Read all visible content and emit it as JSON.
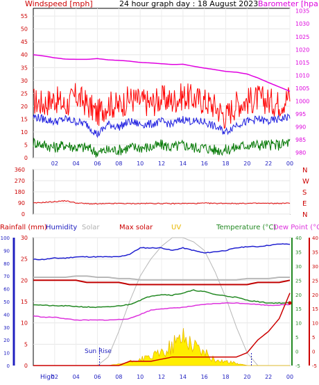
{
  "colors": {
    "windspeed_avg": "#2020e0",
    "windspeed_gust": "#ff0000",
    "windspeed_min": "#007700",
    "barometer": "#e000e0",
    "wind_dir": "#e00000",
    "rainfall": "#c00000",
    "humidity": "#2020d0",
    "solar": "#b0b0b0",
    "max_solar": "#c00000",
    "uv": "#e8b800",
    "temperature": "#228822",
    "dew_point": "#dd33dd",
    "solar_fill": "#ffee00",
    "axis_blue": "#2020c0",
    "axis_green": "#228822",
    "axis_red": "#cc0000"
  },
  "chart_data": [
    {
      "name": "wind-barometer",
      "type": "line",
      "title": "24 hour graph day : 18 August 2023",
      "left_label": "Windspeed [mph]",
      "right_label": "Barometer [hpa]",
      "x_ticks": [
        "02",
        "04",
        "06",
        "08",
        "10",
        "12",
        "14",
        "16",
        "18",
        "20",
        "22",
        "00"
      ],
      "y_left_ticks": [
        "0",
        "5",
        "10",
        "15",
        "20",
        "25",
        "30",
        "35",
        "40",
        "45",
        "50",
        "55"
      ],
      "y_right_ticks": [
        "980",
        "985",
        "990",
        "995",
        "1000",
        "1005",
        "1010",
        "1015",
        "1020",
        "1025",
        "1030",
        "1035"
      ],
      "ylim_left": [
        0,
        58
      ],
      "ylim_right": [
        978,
        1036
      ],
      "x_hours": [
        0,
        1,
        2,
        3,
        4,
        5,
        6,
        7,
        8,
        9,
        10,
        11,
        12,
        13,
        14,
        15,
        16,
        17,
        18,
        19,
        20,
        21,
        22,
        23,
        24
      ],
      "series": [
        {
          "key": "gust",
          "values": [
            22,
            21,
            23,
            20,
            24,
            21,
            17,
            21,
            20,
            23,
            22,
            21,
            23,
            22,
            24,
            23,
            22,
            20,
            16,
            21,
            22,
            23,
            22,
            21,
            24
          ]
        },
        {
          "key": "avg",
          "values": [
            16,
            15,
            14,
            15,
            14,
            13,
            9,
            13,
            12,
            14,
            13,
            13,
            14,
            13,
            15,
            14,
            14,
            12,
            10,
            13,
            14,
            15,
            14,
            15,
            16
          ]
        },
        {
          "key": "min",
          "values": [
            6,
            5,
            4,
            5,
            4,
            4,
            2,
            3,
            3,
            4,
            4,
            4,
            5,
            4,
            5,
            4,
            4,
            3,
            3,
            4,
            5,
            5,
            5,
            5,
            6
          ]
        },
        {
          "key": "barometer",
          "values": [
            1018,
            1017.5,
            1016.8,
            1016.3,
            1016.2,
            1016.2,
            1016.5,
            1016,
            1015.8,
            1015.5,
            1015,
            1014.8,
            1014.5,
            1014.2,
            1014.3,
            1013.5,
            1012.8,
            1012.2,
            1011.5,
            1011.2,
            1010.5,
            1009,
            1007.2,
            1005.5,
            1003.8
          ]
        }
      ]
    },
    {
      "name": "wind-direction",
      "type": "line",
      "y_left_ticks": [
        "360",
        "270",
        "180",
        "90",
        "0"
      ],
      "y_right_labels": [
        "N",
        "W",
        "S",
        "E",
        "N"
      ],
      "ylim": [
        0,
        360
      ],
      "x_hours": [
        0,
        1,
        2,
        3,
        4,
        5,
        6,
        7,
        8,
        9,
        10,
        11,
        12,
        13,
        14,
        15,
        16,
        17,
        18,
        19,
        20,
        21,
        22,
        23,
        24
      ],
      "series": [
        {
          "key": "direction",
          "values": [
            88,
            95,
            100,
            108,
            90,
            84,
            82,
            84,
            86,
            84,
            85,
            86,
            85,
            84,
            86,
            85,
            88,
            86,
            87,
            85,
            86,
            87,
            86,
            86,
            88
          ]
        }
      ]
    },
    {
      "name": "rain-humidity-solar-temp",
      "type": "line",
      "legend": [
        "Rainfall (mm)",
        "Humidity",
        "Solar",
        "Max solar",
        "UV",
        "Temperature (°C)",
        "Dew Point (°C)"
      ],
      "annotations": [
        "Sun Rise",
        "High"
      ],
      "x_ticks": [
        "02",
        "04",
        "06",
        "08",
        "10",
        "12",
        "14",
        "16",
        "18",
        "20",
        "22",
        "00"
      ],
      "y_left_outer_ticks": [
        "0",
        "10",
        "20",
        "30",
        "40",
        "50",
        "60",
        "70",
        "80",
        "90",
        "100"
      ],
      "y_left_inner_ticks": [
        "0",
        "5",
        "10",
        "15",
        "20",
        "25",
        "30"
      ],
      "y_right_ticks": [
        "-5",
        "0",
        "5",
        "10",
        "15",
        "20",
        "25",
        "30",
        "35",
        "40"
      ],
      "ylim_humidity": [
        0,
        100
      ],
      "ylim_rain": [
        0,
        30
      ],
      "ylim_temp": [
        -5,
        40
      ],
      "sunrise_hour": 6.2,
      "sunset_hour": 20.4,
      "x_hours": [
        0,
        1,
        2,
        3,
        4,
        5,
        6,
        7,
        8,
        9,
        10,
        11,
        12,
        13,
        14,
        15,
        16,
        17,
        18,
        19,
        20,
        21,
        22,
        23,
        24
      ],
      "series": [
        {
          "key": "humidity",
          "values": [
            83,
            83,
            84,
            84,
            85,
            85,
            85,
            85,
            85,
            87,
            92,
            92,
            92,
            90,
            92,
            90,
            88,
            89,
            90,
            92,
            93,
            93,
            94,
            95,
            95
          ]
        },
        {
          "key": "solar_band",
          "values": [
            69,
            69,
            69,
            69,
            70,
            70,
            69,
            69,
            68,
            68,
            67,
            67,
            67,
            67,
            67,
            67,
            67,
            67,
            67,
            67,
            68,
            68,
            68,
            69,
            69
          ]
        },
        {
          "key": "rain_line",
          "values": [
            20,
            20,
            20,
            20,
            20,
            19.5,
            19.5,
            19.5,
            19.5,
            19,
            19,
            19,
            19,
            19,
            19,
            19,
            19,
            19,
            19,
            19,
            19,
            19.5,
            19.5,
            19.5,
            20
          ]
        },
        {
          "key": "temperature",
          "values": [
            16.5,
            16.2,
            16,
            16,
            15.8,
            15.6,
            15.5,
            15.6,
            16,
            16.5,
            18,
            19.5,
            20,
            19.8,
            20.5,
            21.5,
            21,
            20,
            19.5,
            19,
            18,
            17.5,
            17,
            17,
            17
          ]
        },
        {
          "key": "dew_point",
          "values": [
            12.5,
            12,
            12,
            11.5,
            11,
            11,
            11,
            11,
            11.2,
            11.5,
            13,
            14.5,
            15,
            15.2,
            15.5,
            16,
            16.5,
            16.8,
            17,
            17,
            16.8,
            16.5,
            16.2,
            16.3,
            16.5
          ]
        },
        {
          "key": "solar_curve",
          "values": [
            0,
            0,
            0,
            0,
            0,
            0,
            0,
            2,
            8,
            15,
            21,
            25,
            28,
            30,
            30,
            29,
            27,
            22,
            16,
            9,
            3,
            0,
            0,
            0,
            0
          ]
        },
        {
          "key": "uv_solar",
          "values": [
            0,
            0,
            0,
            0,
            0,
            0,
            0,
            0,
            0.3,
            0.8,
            1.5,
            2,
            3,
            4.5,
            7,
            5,
            3,
            1.2,
            1,
            0.5,
            0,
            0,
            0,
            0,
            0
          ]
        },
        {
          "key": "rain_total",
          "values": [
            0,
            0,
            0,
            0,
            0,
            0,
            0,
            0,
            0,
            1,
            1,
            1,
            1.5,
            2,
            2,
            2,
            2,
            2,
            2,
            2,
            3,
            6,
            8,
            11,
            17
          ]
        }
      ]
    }
  ]
}
